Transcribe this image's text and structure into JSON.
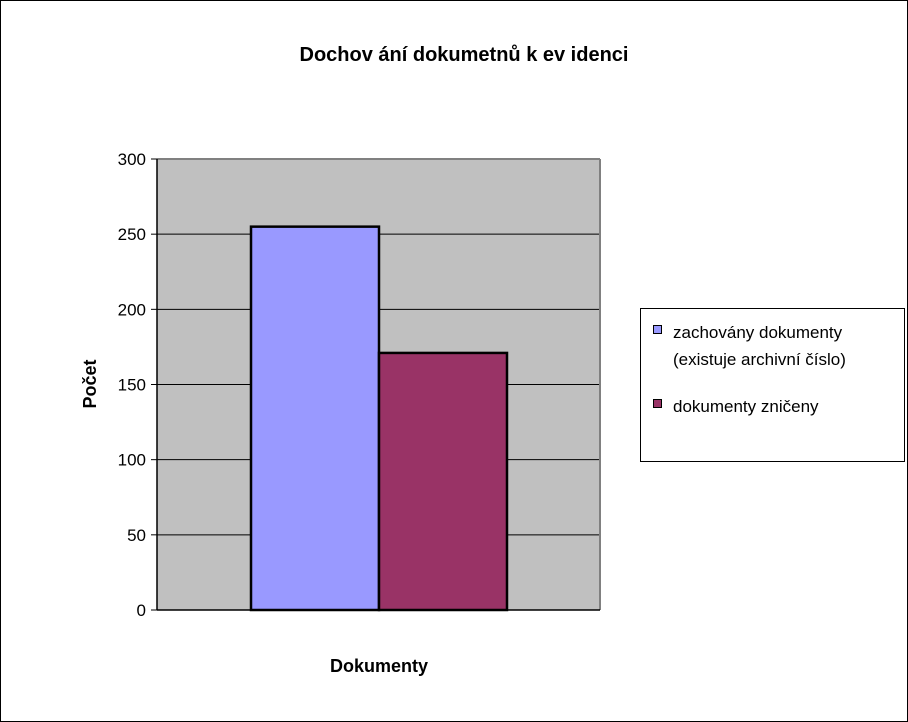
{
  "chart_data": {
    "type": "bar",
    "title": "Dochov ání dokumetnů k ev idenci",
    "xlabel": "Dokumenty",
    "ylabel": "Počet",
    "ylim": [
      0,
      300
    ],
    "yticks": [
      0,
      50,
      100,
      150,
      200,
      250,
      300
    ],
    "grid": true,
    "legend_position": "right",
    "plot_background": "#c0c0c0",
    "series": [
      {
        "name": "zachovány dokumenty (existuje archivní číslo)",
        "value": 255,
        "color": "#9999ff"
      },
      {
        "name": "dokumenty zničeny",
        "value": 171,
        "color": "#993366"
      }
    ]
  },
  "legend": {
    "item1_line1": "zachovány dokumenty",
    "item1_line2": "(existuje archivní číslo)",
    "item2": "dokumenty zničeny"
  }
}
